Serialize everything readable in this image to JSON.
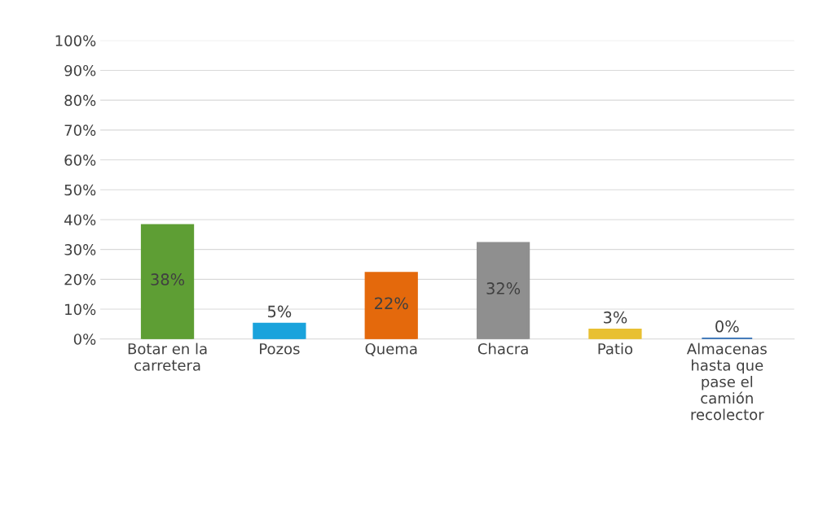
{
  "chart_data": {
    "type": "bar",
    "categories": [
      "Botar en la\ncarretera",
      "Pozos",
      "Quema",
      "Chacra",
      "Patio",
      "Almacenas\nhasta que\npase el\ncamión\nrecolector"
    ],
    "values": [
      38,
      5,
      22,
      32,
      3,
      0
    ],
    "colors": [
      "#5e9e34",
      "#1aa3dc",
      "#e4690c",
      "#8f8f8f",
      "#e8c032",
      "#2e6db4"
    ],
    "value_labels": [
      "38%",
      "5%",
      "22%",
      "32%",
      "3%",
      "0%"
    ],
    "ylim": [
      0,
      100
    ],
    "yticks": [
      {
        "value": 0,
        "label": "0%"
      },
      {
        "value": 10,
        "label": "10%"
      },
      {
        "value": 20,
        "label": "20%"
      },
      {
        "value": 30,
        "label": "30%"
      },
      {
        "value": 40,
        "label": "40%"
      },
      {
        "value": 50,
        "label": "50%"
      },
      {
        "value": 60,
        "label": "60%"
      },
      {
        "value": 70,
        "label": "70%"
      },
      {
        "value": 80,
        "label": "80%"
      },
      {
        "value": 90,
        "label": "90%"
      },
      {
        "value": 100,
        "label": "100%"
      }
    ],
    "grid": "y"
  }
}
